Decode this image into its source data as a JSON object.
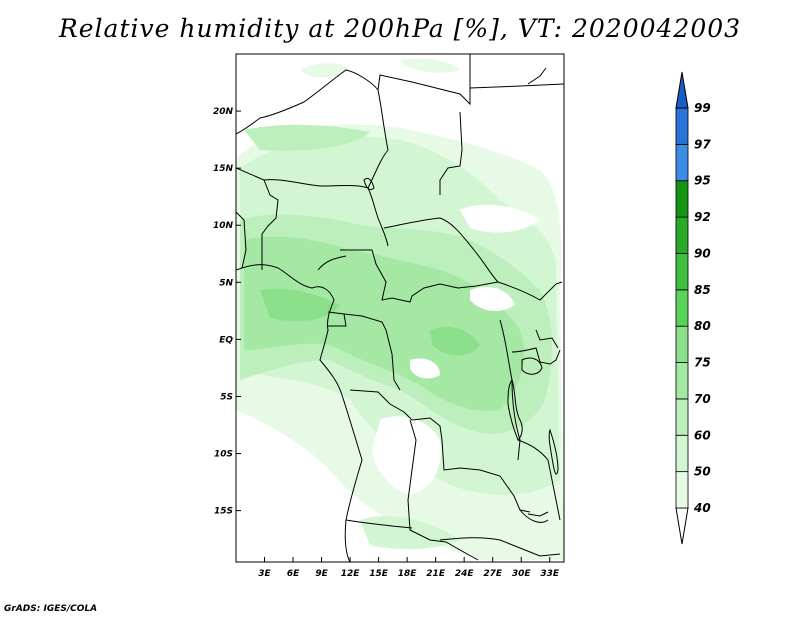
{
  "title": "Relative humidity at 200hPa [%], VT: 2020042003",
  "credit": "GrADS: IGES/COLA",
  "map": {
    "lat_ticks": [
      {
        "value": 20,
        "label": "20N"
      },
      {
        "value": 15,
        "label": "15N"
      },
      {
        "value": 10,
        "label": "10N"
      },
      {
        "value": 5,
        "label": "5N"
      },
      {
        "value": 0,
        "label": "EQ"
      },
      {
        "value": -5,
        "label": "5S"
      },
      {
        "value": -10,
        "label": "10S"
      },
      {
        "value": -15,
        "label": "15S"
      }
    ],
    "lon_ticks": [
      {
        "value": 3,
        "label": "3E"
      },
      {
        "value": 6,
        "label": "6E"
      },
      {
        "value": 9,
        "label": "9E"
      },
      {
        "value": 12,
        "label": "12E"
      },
      {
        "value": 15,
        "label": "15E"
      },
      {
        "value": 18,
        "label": "18E"
      },
      {
        "value": 21,
        "label": "21E"
      },
      {
        "value": 24,
        "label": "24E"
      },
      {
        "value": 27,
        "label": "27E"
      },
      {
        "value": 30,
        "label": "30E"
      },
      {
        "value": 33,
        "label": "33E"
      }
    ],
    "lon_range": [
      0,
      34.5
    ],
    "lat_range": [
      -19.5,
      25
    ]
  },
  "colorbar": {
    "levels": [
      {
        "label": "40",
        "color": "#e6fae6"
      },
      {
        "label": "50",
        "color": "#d2f5d2"
      },
      {
        "label": "60",
        "color": "#bcefbc"
      },
      {
        "label": "70",
        "color": "#a4e8a4"
      },
      {
        "label": "75",
        "color": "#8ce08c"
      },
      {
        "label": "80",
        "color": "#5ad25a"
      },
      {
        "label": "85",
        "color": "#40c040"
      },
      {
        "label": "90",
        "color": "#28aa28"
      },
      {
        "label": "92",
        "color": "#149614"
      },
      {
        "label": "95",
        "color": "#3c8ce6"
      },
      {
        "label": "97",
        "color": "#2a73d8"
      },
      {
        "label": "99",
        "color": "#1a5cc8"
      }
    ],
    "below_color": "#ffffff",
    "above_color": "#1a5cc8"
  }
}
